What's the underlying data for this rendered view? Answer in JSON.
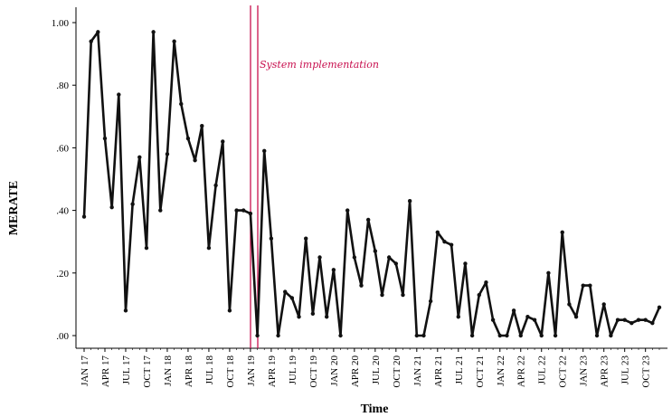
{
  "chart_data": {
    "type": "line",
    "xlabel": "Time",
    "ylabel": "MERATE",
    "ylim": [
      0,
      1.0
    ],
    "yticks": [
      0,
      0.2,
      0.4,
      0.6,
      0.8,
      1.0
    ],
    "ytick_labels": [
      ".00",
      ".20",
      ".40",
      ".60",
      ".80",
      "1.00"
    ],
    "xtick_labels": [
      "JAN 17",
      "APR 17",
      "JUL 17",
      "OCT 17",
      "JAN 18",
      "APR 18",
      "JUL 18",
      "OCT 18",
      "JAN 19",
      "APR 19",
      "JUL 19",
      "OCT 19",
      "JAN 20",
      "APR 20",
      "JUL 20",
      "OCT 20",
      "JAN 21",
      "APR 21",
      "JUL 21",
      "OCT 21",
      "JAN 22",
      "APR 22",
      "JUL 22",
      "OCT 22",
      "JAN 23",
      "APR 23",
      "JUL 23",
      "OCT 23"
    ],
    "grid": false,
    "line_color": "#111111",
    "annotation": {
      "text": "System implementation",
      "color": "#c8104f",
      "between": [
        "JAN 19",
        "APR 19"
      ]
    },
    "series": [
      {
        "values": [
          0.38,
          0.94,
          0.97,
          0.63,
          0.41,
          0.77,
          0.08,
          0.42,
          0.57,
          0.28,
          0.97,
          0.4,
          0.58,
          0.94,
          0.74,
          0.63,
          0.56,
          0.67,
          0.28,
          0.48,
          0.62,
          0.08,
          0.4,
          0.4,
          0.39,
          0.0,
          0.59,
          0.31,
          0.0,
          0.14,
          0.12,
          0.06,
          0.31,
          0.07,
          0.25,
          0.06,
          0.21,
          0.0,
          0.4,
          0.25,
          0.16,
          0.37,
          0.27,
          0.13,
          0.25,
          0.23,
          0.13,
          0.43,
          0.0,
          0.0,
          0.11,
          0.33,
          0.3,
          0.29,
          0.06,
          0.23,
          0.0,
          0.13,
          0.17,
          0.05,
          0.0,
          0.0,
          0.08,
          0.0,
          0.06,
          0.05,
          0.0,
          0.2,
          0.0,
          0.33,
          0.1,
          0.06,
          0.16,
          0.16,
          0.0,
          0.1,
          0.0,
          0.05,
          0.05,
          0.04,
          0.05,
          0.05,
          0.04,
          0.09
        ]
      }
    ]
  }
}
